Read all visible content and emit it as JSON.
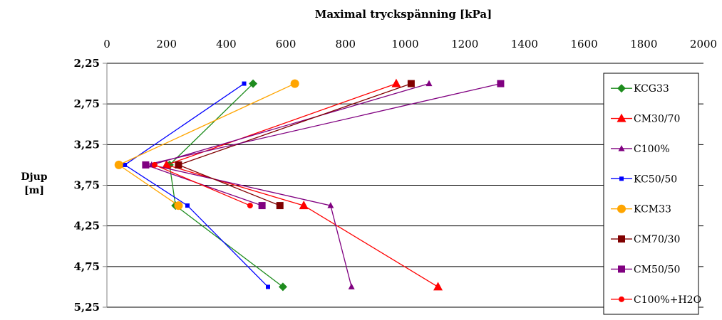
{
  "chart_data": {
    "type": "line",
    "title": "Maximal tryckspänning [kPa]",
    "ylabel": "Djup [m]",
    "xlabel": "",
    "xlim": [
      0,
      2000
    ],
    "ylim": [
      2.25,
      5.25
    ],
    "x_axis_position": "top",
    "y_inverted": true,
    "grid": "horizontal",
    "legend_position": "right",
    "x_ticks": [
      "0",
      "200",
      "400",
      "600",
      "800",
      "1000",
      "1200",
      "1400",
      "1600",
      "1800",
      "2000"
    ],
    "y_ticks": [
      "2,25",
      "2,75",
      "3,25",
      "3,75",
      "4,25",
      "4,75",
      "5,25"
    ],
    "series": [
      {
        "name": "KCG33",
        "color": "#1e8c1e",
        "marker": "diamond",
        "points": [
          [
            490,
            2.5
          ],
          [
            210,
            3.5
          ],
          [
            230,
            4.0
          ],
          [
            590,
            5.0
          ]
        ]
      },
      {
        "name": "CM30/70",
        "color": "#ff0000",
        "marker": "triangle",
        "points": [
          [
            970,
            2.5
          ],
          [
            200,
            3.5
          ],
          [
            660,
            4.0
          ],
          [
            1110,
            5.0
          ]
        ]
      },
      {
        "name": "C100%",
        "color": "#800080",
        "marker": "triangle-small",
        "points": [
          [
            1080,
            2.5
          ],
          [
            150,
            3.5
          ],
          [
            750,
            4.0
          ],
          [
            820,
            5.0
          ]
        ]
      },
      {
        "name": "KC50/50",
        "color": "#0000ff",
        "marker": "square-small",
        "points": [
          [
            460,
            2.5
          ],
          [
            60,
            3.5
          ],
          [
            270,
            4.0
          ],
          [
            540,
            5.0
          ]
        ]
      },
      {
        "name": "KCM33",
        "color": "#ffa500",
        "marker": "circle",
        "points": [
          [
            630,
            2.5
          ],
          [
            40,
            3.5
          ],
          [
            240,
            4.0
          ]
        ]
      },
      {
        "name": "CM70/30",
        "color": "#800000",
        "marker": "square",
        "points": [
          [
            1020,
            2.5
          ],
          [
            240,
            3.5
          ],
          [
            580,
            4.0
          ]
        ]
      },
      {
        "name": "CM50/50",
        "color": "#800080",
        "marker": "square",
        "points": [
          [
            1320,
            2.5
          ],
          [
            130,
            3.5
          ],
          [
            520,
            4.0
          ]
        ]
      },
      {
        "name": "C100%+H2O",
        "color": "#ff0000",
        "marker": "circle-small",
        "points": [
          [
            160,
            3.5
          ],
          [
            480,
            4.0
          ]
        ]
      }
    ]
  }
}
